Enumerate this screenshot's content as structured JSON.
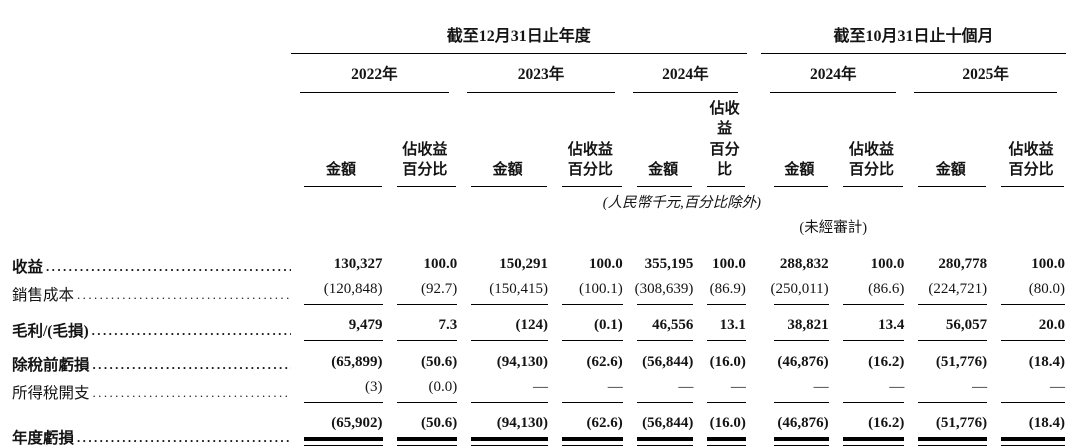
{
  "table": {
    "period_groups": [
      "截至12月31日止年度",
      "截至10月31日止十個月"
    ],
    "year_headers": [
      "2022年",
      "2023年",
      "2024年",
      "2024年",
      "2025年"
    ],
    "col_headers": {
      "amount": "金額",
      "pct_line1": "佔收益",
      "pct_line2": "百分比"
    },
    "notes": {
      "currency": "(人民幣千元,百分比除外)",
      "unaudited": "(未經審計)"
    },
    "rows": [
      {
        "label": "收益",
        "bold": true,
        "values": [
          "130,327",
          "100.0",
          "150,291",
          "100.0",
          "355,195",
          "100.0",
          "288,832",
          "100.0",
          "280,778",
          "100.0"
        ]
      },
      {
        "label": "銷售成本",
        "bold": false,
        "values": [
          "(120,848)",
          "(92.7)",
          "(150,415)",
          "(100.1)",
          "(308,639)",
          "(86.9)",
          "(250,011)",
          "(86.6)",
          "(224,721)",
          "(80.0)"
        ]
      },
      {
        "label": "毛利/(毛損)",
        "bold": true,
        "values": [
          "9,479",
          "7.3",
          "(124)",
          "(0.1)",
          "46,556",
          "13.1",
          "38,821",
          "13.4",
          "56,057",
          "20.0"
        ]
      },
      {
        "label": "除稅前虧損",
        "bold": true,
        "values": [
          "(65,899)",
          "(50.6)",
          "(94,130)",
          "(62.6)",
          "(56,844)",
          "(16.0)",
          "(46,876)",
          "(16.2)",
          "(51,776)",
          "(18.4)"
        ]
      },
      {
        "label": "所得稅開支",
        "bold": false,
        "values": [
          "(3)",
          "(0.0)",
          "—",
          "—",
          "—",
          "—",
          "—",
          "—",
          "—",
          "—"
        ]
      },
      {
        "label": "年度虧損",
        "bold": true,
        "values": [
          "(65,902)",
          "(50.6)",
          "(94,130)",
          "(62.6)",
          "(56,844)",
          "(16.0)",
          "(46,876)",
          "(16.2)",
          "(51,776)",
          "(18.4)"
        ]
      }
    ]
  }
}
